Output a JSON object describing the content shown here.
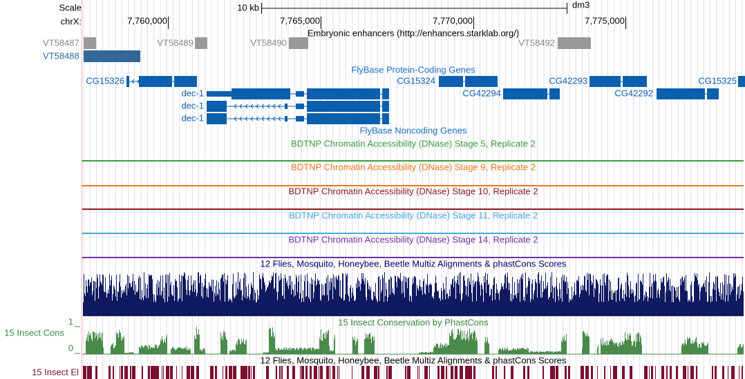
{
  "ruler": {
    "scale": "Scale",
    "chrom": "chrX:",
    "bar_label": "10 kb",
    "assembly": "dm3",
    "ticks": [
      "7,760,000",
      "7,765,000",
      "7,770,000",
      "7,775,000"
    ]
  },
  "enhancers": {
    "title": "Embryonic enhancers (http://enhancers.starklab.org/)",
    "items": [
      "VT58487",
      "VT58488",
      "VT58489",
      "VT58490",
      "VT58492"
    ]
  },
  "protein_coding": {
    "title": "FlyBase Protein-Coding Genes",
    "genes": [
      "CG15326",
      "CG15324",
      "CG42293",
      "CG15325",
      "CG42294",
      "CG42292",
      "dec-1",
      "dec-1",
      "dec-1"
    ]
  },
  "noncoding": {
    "title": "FlyBase Noncoding Genes"
  },
  "dnase": [
    "BDTNP Chromatin Accessibility (DNase) Stage 5, Replicate 2",
    "BDTNP Chromatin Accessibility (DNase) Stage 9, Replicate 2",
    "BDTNP Chromatin Accessibility (DNase) Stage 10, Replicate 2",
    "BDTNP Chromatin Accessibility (DNase) Stage 11, Replicate 2",
    "BDTNP Chromatin Accessibility (DNase) Stage 14, Replicate 2"
  ],
  "multiz": {
    "title": "12 Flies, Mosquito, Honeybee, Beetle Multiz Alignments & phastCons Scores"
  },
  "phastcons": {
    "label": "15 Insect Cons",
    "title": "15 Insect Conservation by PhastCons",
    "axis_max": "1",
    "axis_min": "0"
  },
  "elements": {
    "label": "15 Insect El",
    "title": "12 Flies, Mosquito, Honeybee, Beetle Multiz Alignments & phastCons Scores"
  }
}
